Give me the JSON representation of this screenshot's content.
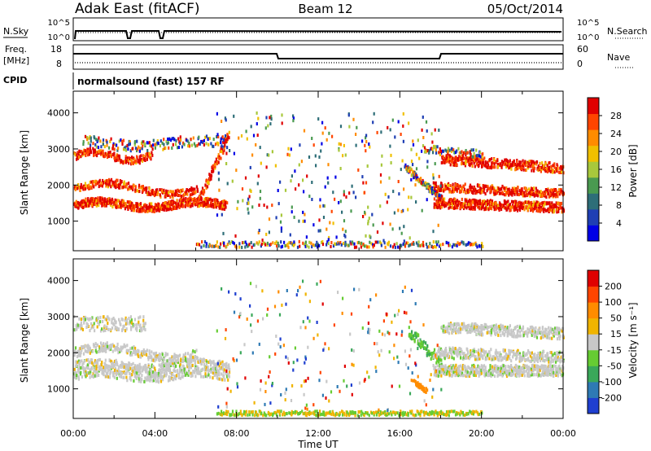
{
  "header": {
    "title": "Adak East (fitACF)",
    "beam": "Beam 12",
    "date": "05/Oct/2014"
  },
  "top_panels": {
    "nsky_label": "N.Sky",
    "nsearch_label": "N.Search",
    "exp_tick_top": "10^5",
    "exp_tick_bottom": "10^0",
    "freq_label_1": "Freq.",
    "freq_label_2": "[MHz]",
    "nave_label": "Nave",
    "freq_ticks": [
      "18",
      "8"
    ],
    "nave_ticks": [
      "60",
      "0"
    ],
    "cpid_label": "CPID",
    "cpid_text": "normalsound (fast) 157 RF"
  },
  "chart_data": [
    {
      "type": "heatmap",
      "title": "",
      "xlabel": "Time UT",
      "ylabel": "Slant Range [km]",
      "xticks": [
        "00:00",
        "04:00",
        "08:00",
        "12:00",
        "16:00",
        "20:00",
        "00:00"
      ],
      "xlim_hours": [
        0,
        24
      ],
      "yticks": [
        1000,
        2000,
        3000,
        4000
      ],
      "ylim": [
        180,
        4600
      ],
      "colorbar_label": "Power [dB]",
      "colorbar_ticks": [
        4,
        8,
        12,
        16,
        20,
        24,
        28
      ],
      "colorbar_range": [
        0,
        32
      ],
      "colors": [
        "#0000e6",
        "#1f3fb4",
        "#2e6e78",
        "#4a9a50",
        "#a8c83c",
        "#f0c000",
        "#ff8c00",
        "#ff4500",
        "#e00000"
      ]
    },
    {
      "type": "heatmap",
      "title": "",
      "xlabel": "Time UT",
      "ylabel": "Slant Range [km]",
      "xticks": [
        "00:00",
        "04:00",
        "08:00",
        "12:00",
        "16:00",
        "20:00",
        "00:00"
      ],
      "xlim_hours": [
        0,
        24
      ],
      "yticks": [
        1000,
        2000,
        3000,
        4000
      ],
      "ylim": [
        180,
        4600
      ],
      "colorbar_label": "Velocity [m s⁻¹]",
      "colorbar_ticks": [
        "200",
        "100",
        "50",
        "15",
        "-15",
        "-50",
        "-100",
        "-200"
      ],
      "colors": [
        "#1f3fd0",
        "#2e7ab4",
        "#3aa85a",
        "#66cc33",
        "#c8c8c8",
        "#f0b400",
        "#ff8c00",
        "#ff4500",
        "#e00000"
      ]
    }
  ]
}
